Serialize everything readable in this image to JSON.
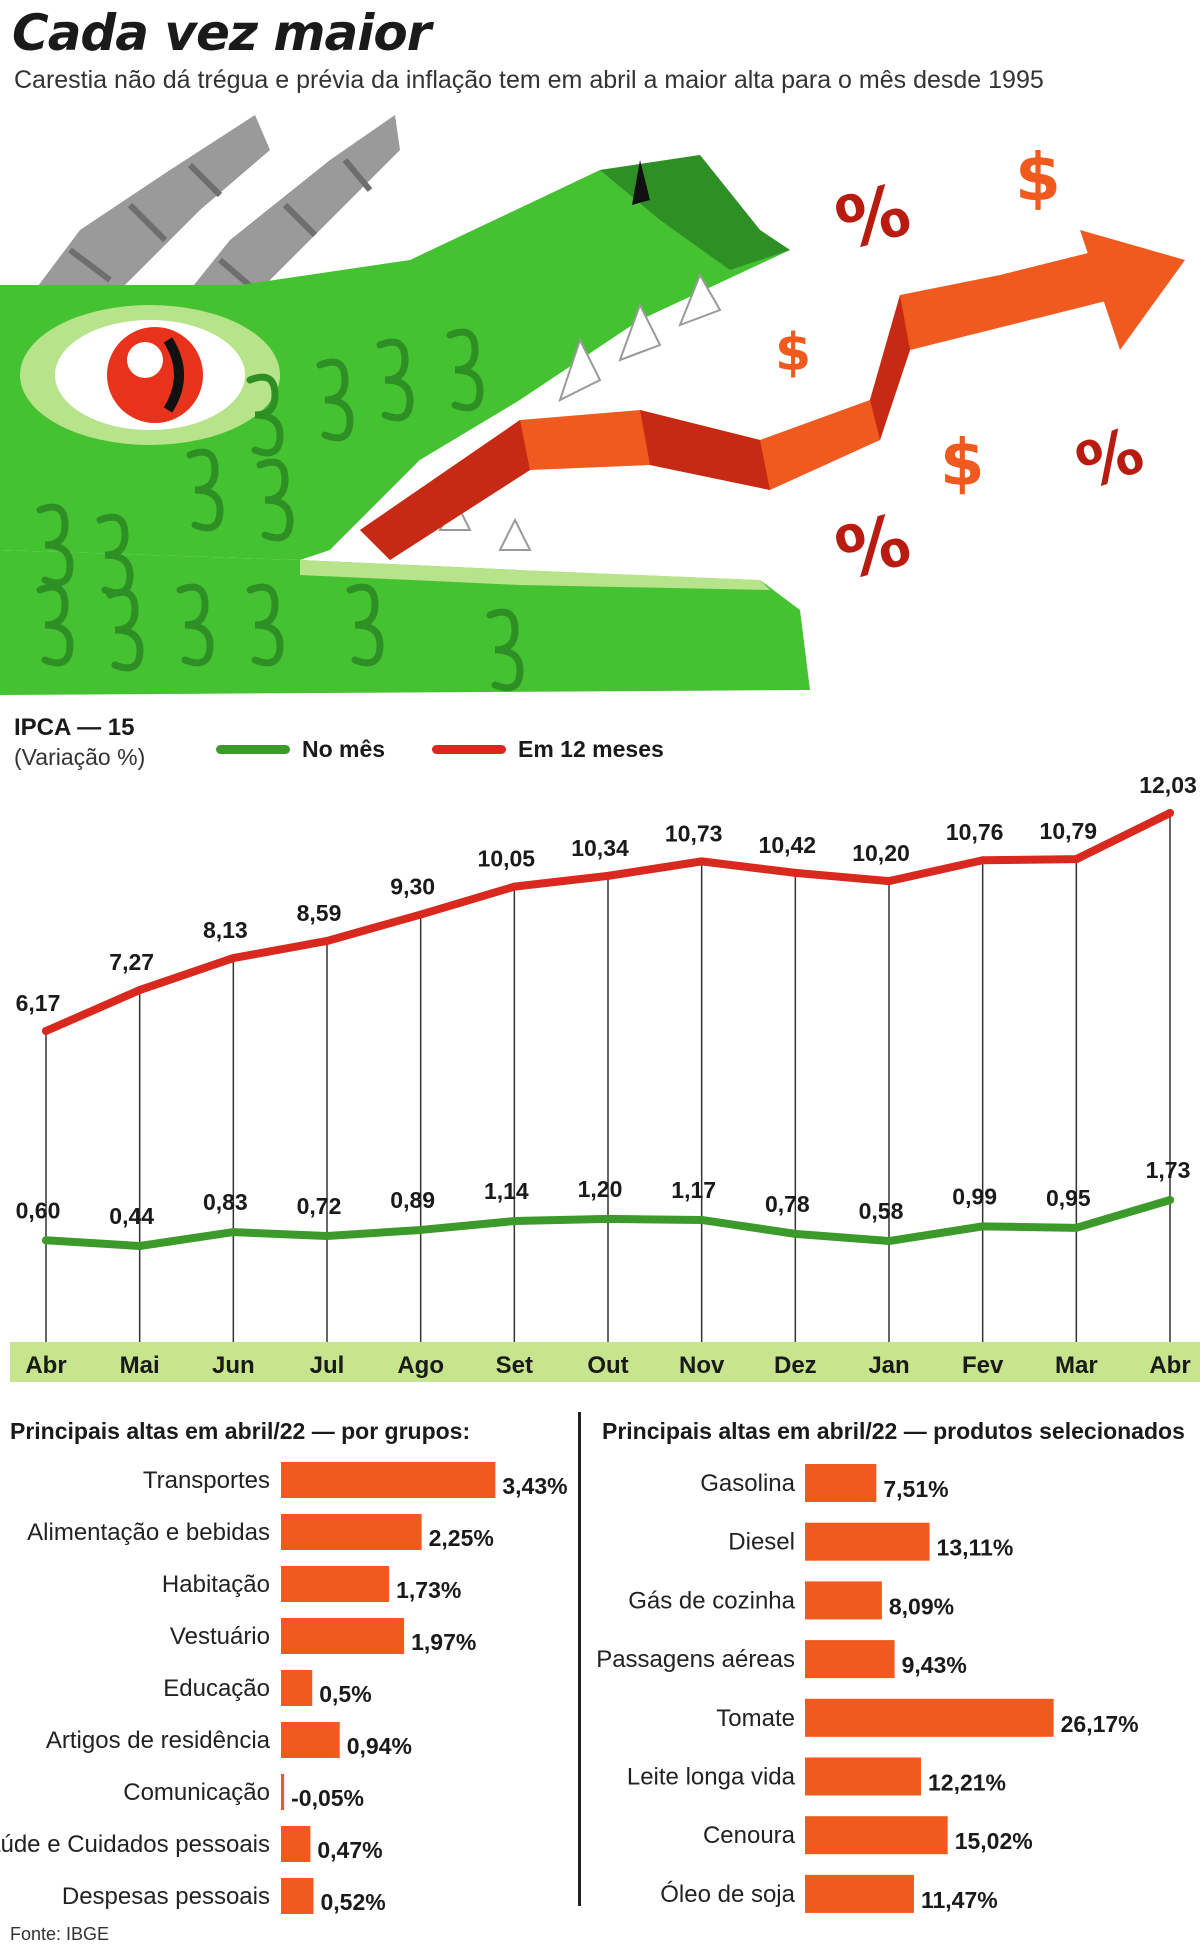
{
  "header": {
    "title": "Cada vez maior",
    "subtitle": "Carestia não dá trégua e prévia da inflação tem em abril a maior alta para o mês desde 1995"
  },
  "illustration": {
    "symbols": [
      "%",
      "$",
      "$",
      "%",
      "%",
      "$"
    ]
  },
  "colors": {
    "green": "#3c9a2a",
    "red": "#d9291f",
    "bar": "#f15a1e",
    "axis_band": "#c6e58c",
    "dragon": "#45c231"
  },
  "chart_data": [
    {
      "type": "line",
      "title": "IPCA — 15",
      "ylabel": "(Variação %)",
      "categories": [
        "Abr",
        "Mai",
        "Jun",
        "Jul",
        "Ago",
        "Set",
        "Out",
        "Nov",
        "Dez",
        "Jan",
        "Fev",
        "Mar",
        "Abr"
      ],
      "series": [
        {
          "name": "No mês",
          "values": [
            0.6,
            0.44,
            0.83,
            0.72,
            0.89,
            1.14,
            1.2,
            1.17,
            0.78,
            0.58,
            0.99,
            0.95,
            1.73
          ],
          "labels": [
            "0,60",
            "0,44",
            "0,83",
            "0,72",
            "0,89",
            "1,14",
            "1,20",
            "1,17",
            "0,78",
            "0,58",
            "0,99",
            "0,95",
            "1,73"
          ]
        },
        {
          "name": "Em 12 meses",
          "values": [
            6.17,
            7.27,
            8.13,
            8.59,
            9.3,
            10.05,
            10.34,
            10.73,
            10.42,
            10.2,
            10.76,
            10.79,
            12.03
          ],
          "labels": [
            "6,17",
            "7,27",
            "8,13",
            "8,59",
            "9,30",
            "10,05",
            "10,34",
            "10,73",
            "10,42",
            "10,20",
            "10,76",
            "10,79",
            "12,03"
          ]
        }
      ],
      "grid": false,
      "legend": "top"
    },
    {
      "type": "bar",
      "title": "Principais altas em abril/22 — por grupos:",
      "categories": [
        "Transportes",
        "Alimentação e bebidas",
        "Habitação",
        "Vestuário",
        "Educação",
        "Artigos de residência",
        "Comunicação",
        "Saúde e Cuidados pessoais",
        "Despesas pessoais"
      ],
      "values": [
        3.43,
        2.25,
        1.73,
        1.97,
        0.5,
        0.94,
        -0.05,
        0.47,
        0.52
      ],
      "labels": [
        "3,43%",
        "2,25%",
        "1,73%",
        "1,97%",
        "0,5%",
        "0,94%",
        "-0,05%",
        "0,47%",
        "0,52%"
      ]
    },
    {
      "type": "bar",
      "title": "Principais altas em abril/22 — produtos selecionados",
      "categories": [
        "Gasolina",
        "Diesel",
        "Gás de cozinha",
        "Passagens aéreas",
        "Tomate",
        "Leite longa vida",
        "Cenoura",
        "Óleo de soja"
      ],
      "values": [
        7.51,
        13.11,
        8.09,
        9.43,
        26.17,
        12.21,
        15.02,
        11.47
      ],
      "labels": [
        "7,51%",
        "13,11%",
        "8,09%",
        "9,43%",
        "26,17%",
        "12,21%",
        "15,02%",
        "11,47%"
      ]
    }
  ],
  "source": "Fonte: IBGE"
}
